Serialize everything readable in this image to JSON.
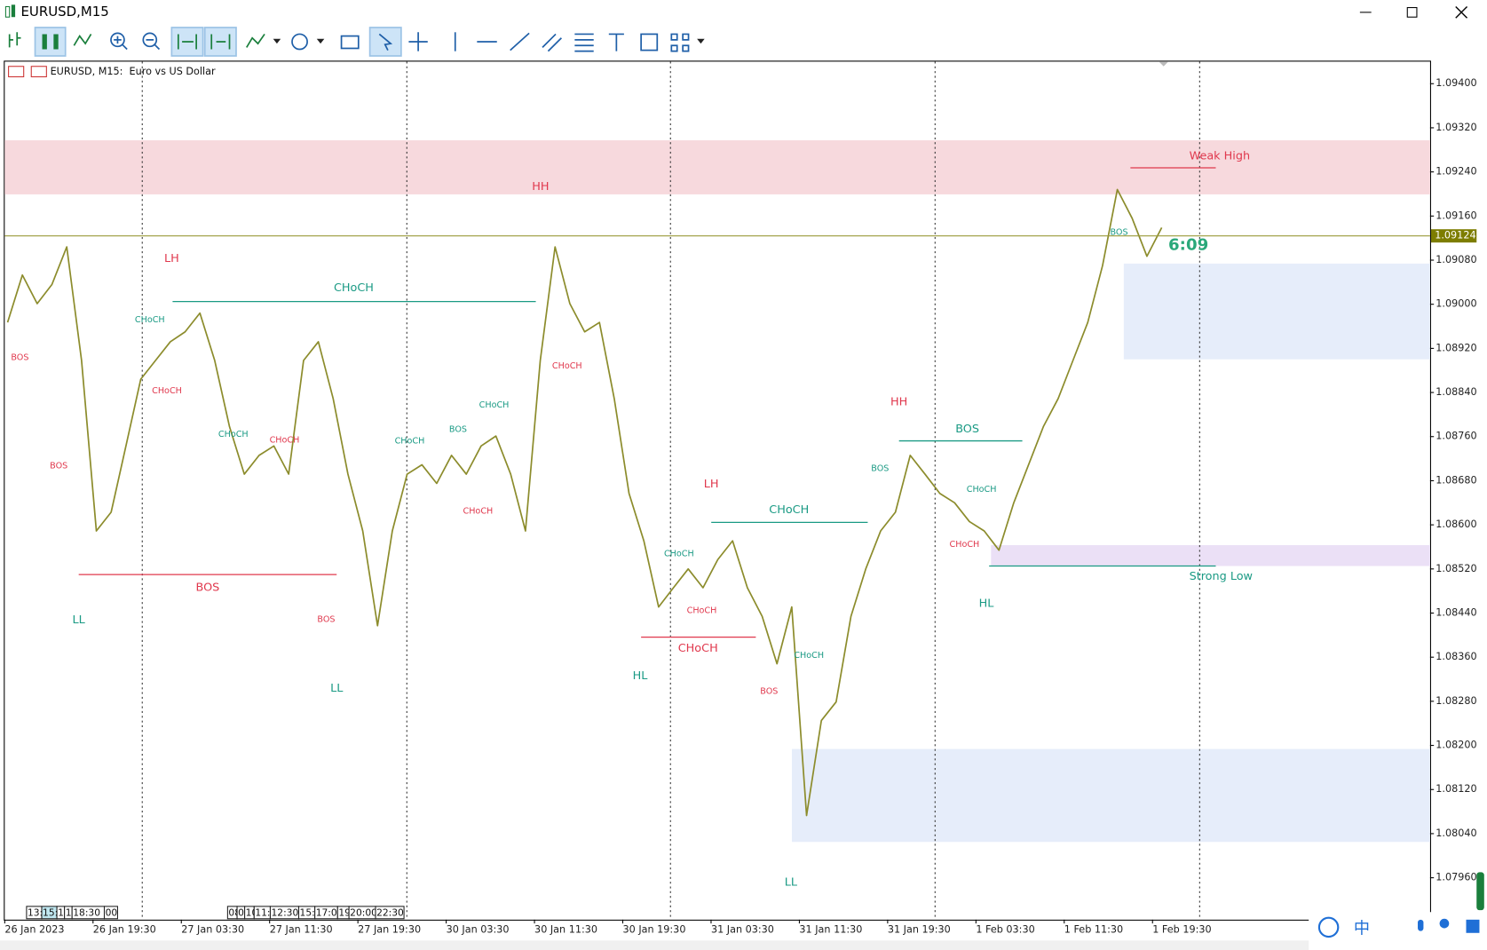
{
  "window": {
    "title": "EURUSD,M15"
  },
  "chart": {
    "type": "line",
    "header": "EURUSD, M15:  Euro vs US Dollar",
    "ylim": [
      1.07884,
      1.0944
    ],
    "yticks": [
      {
        "value": 1.094,
        "label": "1.09400"
      },
      {
        "value": 1.0932,
        "label": "1.09320"
      },
      {
        "value": 1.0924,
        "label": "1.09240"
      },
      {
        "value": 1.0916,
        "label": "1.09160"
      },
      {
        "value": 1.0908,
        "label": "1.09080"
      },
      {
        "value": 1.09,
        "label": "1.09000"
      },
      {
        "value": 1.0892,
        "label": "1.08920"
      },
      {
        "value": 1.0884,
        "label": "1.08840"
      },
      {
        "value": 1.0876,
        "label": "1.08760"
      },
      {
        "value": 1.0868,
        "label": "1.08680"
      },
      {
        "value": 1.086,
        "label": "1.08600"
      },
      {
        "value": 1.0852,
        "label": "1.08520"
      },
      {
        "value": 1.0844,
        "label": "1.08440"
      },
      {
        "value": 1.0836,
        "label": "1.08360"
      },
      {
        "value": 1.0828,
        "label": "1.08280"
      },
      {
        "value": 1.082,
        "label": "1.08200"
      },
      {
        "value": 1.0812,
        "label": "1.08120"
      },
      {
        "value": 1.0804,
        "label": "1.08040"
      },
      {
        "value": 1.0796,
        "label": "1.07960"
      }
    ],
    "x_labels": [
      "26 Jan 2023",
      "26 Jan 19:30",
      "27 Jan 03:30",
      "27 Jan 11:30",
      "27 Jan 19:30",
      "30 Jan 03:30",
      "30 Jan 11:30",
      "30 Jan 19:30",
      "31 Jan 03:30",
      "31 Jan 11:30",
      "31 Jan 19:30",
      "1 Feb 03:30",
      "1 Feb 11:30",
      "1 Feb 19:30"
    ],
    "current_price": 1.09124,
    "timer": "6:09",
    "series": [
      {
        "name": "EURUSD",
        "color": "#8c8c2c",
        "values": [
          1.08967,
          1.09053,
          1.09001,
          1.09036,
          1.09104,
          1.08898,
          1.08589,
          1.08623,
          1.08743,
          1.08864,
          1.08898,
          1.08932,
          1.0895,
          1.08984,
          1.08898,
          1.08778,
          1.08692,
          1.08726,
          1.08743,
          1.08692,
          1.08898,
          1.08932,
          1.08829,
          1.08692,
          1.08589,
          1.08417,
          1.08589,
          1.08692,
          1.08709,
          1.08675,
          1.08726,
          1.08692,
          1.08743,
          1.08761,
          1.08692,
          1.08589,
          1.08898,
          1.09104,
          1.09001,
          1.0895,
          1.08967,
          1.08829,
          1.08657,
          1.08571,
          1.08451,
          1.08486,
          1.0852,
          1.08486,
          1.08537,
          1.08571,
          1.08486,
          1.08434,
          1.08348,
          1.08451,
          1.08073,
          1.08245,
          1.08279,
          1.08434,
          1.0852,
          1.08589,
          1.08623,
          1.08726,
          1.08692,
          1.08657,
          1.0864,
          1.08606,
          1.08589,
          1.08554,
          1.0864,
          1.08709,
          1.08778,
          1.08829,
          1.08898,
          1.08967,
          1.0907,
          1.09208,
          1.09156,
          1.09087,
          1.09139
        ]
      }
    ],
    "annotations": [
      "Weak High",
      "Strong Low",
      "HH",
      "LH",
      "CHoCH",
      "BOS",
      "CHoCH",
      "CHoCH",
      "BOS",
      "BOS",
      "LL",
      "CHoCH",
      "CHoCH",
      "LL",
      "BOS",
      "CHoCH",
      "BOS",
      "CHoCH",
      "CHoCH",
      "CHoCH",
      "HH",
      "LH",
      "CHoCH",
      "CHoCH",
      "CHoCH",
      "CHoCH",
      "HL",
      "CHoCH",
      "BOS",
      "LL",
      "BOS",
      "BOS",
      "CHoCH",
      "CHoCH",
      "HL",
      "BOS"
    ],
    "session_boxes": [
      [
        "13:",
        "15:",
        "1",
        "1",
        "18:30",
        "00"
      ],
      [
        "08",
        "0",
        "10",
        "11:",
        "12:30",
        "15:",
        "17:0",
        "19",
        "20:00",
        "22:30"
      ]
    ]
  },
  "taskbar": {
    "ime": "中"
  }
}
